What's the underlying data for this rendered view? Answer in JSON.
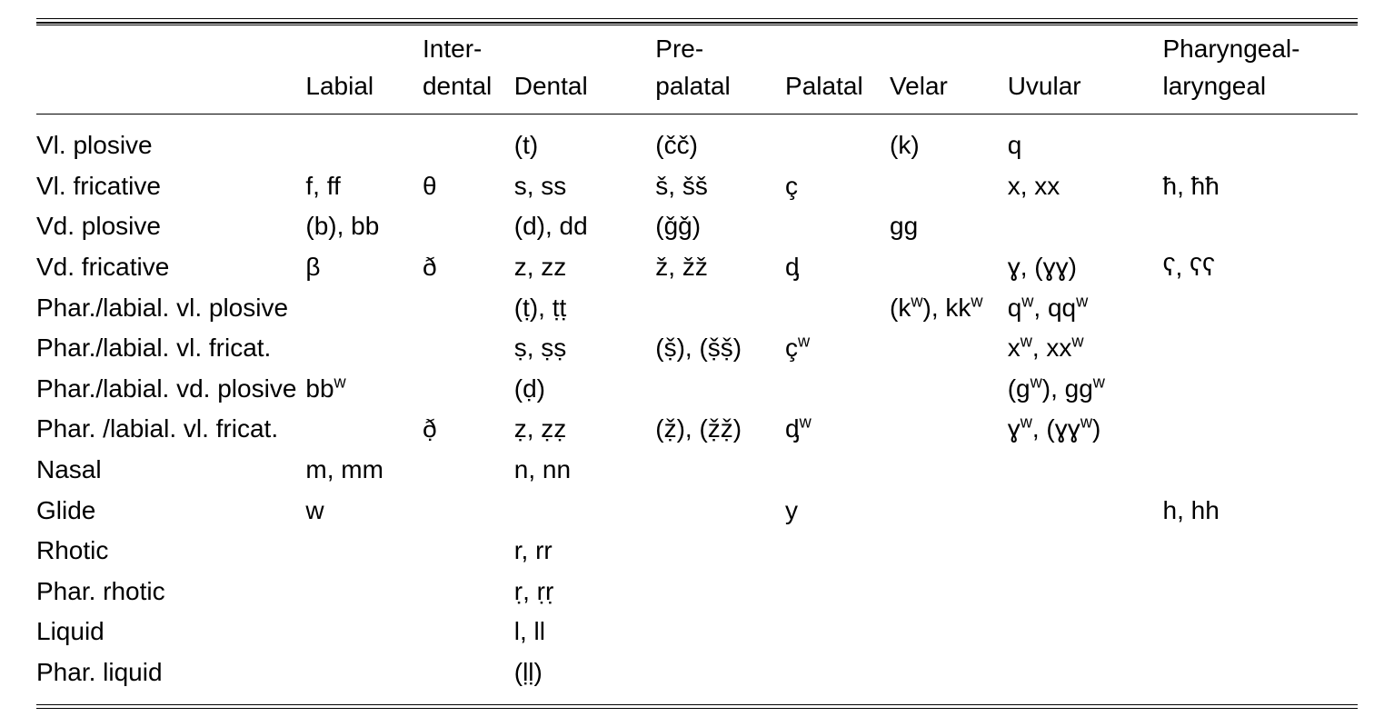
{
  "table": {
    "columns": [
      "",
      "Labial",
      "Inter-\ndental",
      "Dental",
      "Pre-\npalatal",
      "Palatal",
      "Velar",
      "Uvular",
      "Pharyngeal-\nlaryngeal"
    ],
    "col_widths_pct": [
      19,
      9,
      7,
      11,
      10,
      8,
      9,
      12,
      15
    ],
    "font_family": "sans-serif",
    "font_size_pt": 21,
    "text_color": "#000000",
    "background_color": "#ffffff",
    "rule_color": "#000000",
    "header_rule": "double-top single-bottom",
    "footer_rule": "double-bottom",
    "rows": [
      {
        "label": "Vl. plosive",
        "cells": [
          "",
          "",
          "(t)",
          "(čč)",
          "",
          "(k)",
          "q",
          ""
        ]
      },
      {
        "label": "Vl. fricative",
        "cells": [
          "f, ff",
          "θ",
          "s, ss",
          "š, šš",
          "ç",
          "",
          "x, xx",
          "ħ, ħħ"
        ]
      },
      {
        "label": "Vd. plosive",
        "cells": [
          "(b), bb",
          "",
          "(d), dd",
          "(ǧǧ)",
          "",
          "gg",
          "",
          ""
        ]
      },
      {
        "label": "Vd. fricative",
        "cells": [
          "β",
          "ð",
          "z, zz",
          "ž, žž",
          "ᶁ",
          "",
          "ɣ, (ɣɣ)",
          "ʕ, ʕʕ"
        ]
      },
      {
        "label": "Phar./labial. vl. plosive",
        "cells": [
          "",
          "",
          "(ṭ), ṭṭ",
          "",
          "",
          "(kʷ), kkʷ",
          "qʷ, qqʷ",
          ""
        ]
      },
      {
        "label": "Phar./labial. vl. fricat.",
        "cells": [
          "",
          "",
          "ṣ, ṣṣ",
          "(ṣ̌), (ṣ̌ṣ̌)",
          "çʷ",
          "",
          "xʷ, xxʷ",
          ""
        ]
      },
      {
        "label": "Phar./labial. vd. plosive",
        "cells": [
          "bbʷ",
          "",
          "(ḍ)",
          "",
          "",
          "",
          "(gʷ), ggʷ",
          ""
        ]
      },
      {
        "label": "Phar. /labial. vl. fricat.",
        "cells": [
          "",
          "ð̣",
          "ẓ, ẓẓ",
          "(ẓ̌), (ẓ̌ẓ̌)",
          "ᶁʷ",
          "",
          "ɣʷ, (ɣɣʷ)",
          ""
        ]
      },
      {
        "label": "Nasal",
        "cells": [
          "m, mm",
          "",
          "n, nn",
          "",
          "",
          "",
          "",
          ""
        ]
      },
      {
        "label": "Glide",
        "cells": [
          "w",
          "",
          "",
          "",
          "y",
          "",
          "",
          "h, hh"
        ]
      },
      {
        "label": "Rhotic",
        "cells": [
          "",
          "",
          "r, rr",
          "",
          "",
          "",
          "",
          ""
        ]
      },
      {
        "label": "Phar. rhotic",
        "cells": [
          "",
          "",
          "ṛ, ṛṛ",
          "",
          "",
          "",
          "",
          ""
        ]
      },
      {
        "label": "Liquid",
        "cells": [
          "",
          "",
          "l, ll",
          "",
          "",
          "",
          "",
          ""
        ]
      },
      {
        "label": "Phar. liquid",
        "cells": [
          "",
          "",
          "(ḷḷ)",
          "",
          "",
          "",
          "",
          ""
        ]
      }
    ]
  }
}
